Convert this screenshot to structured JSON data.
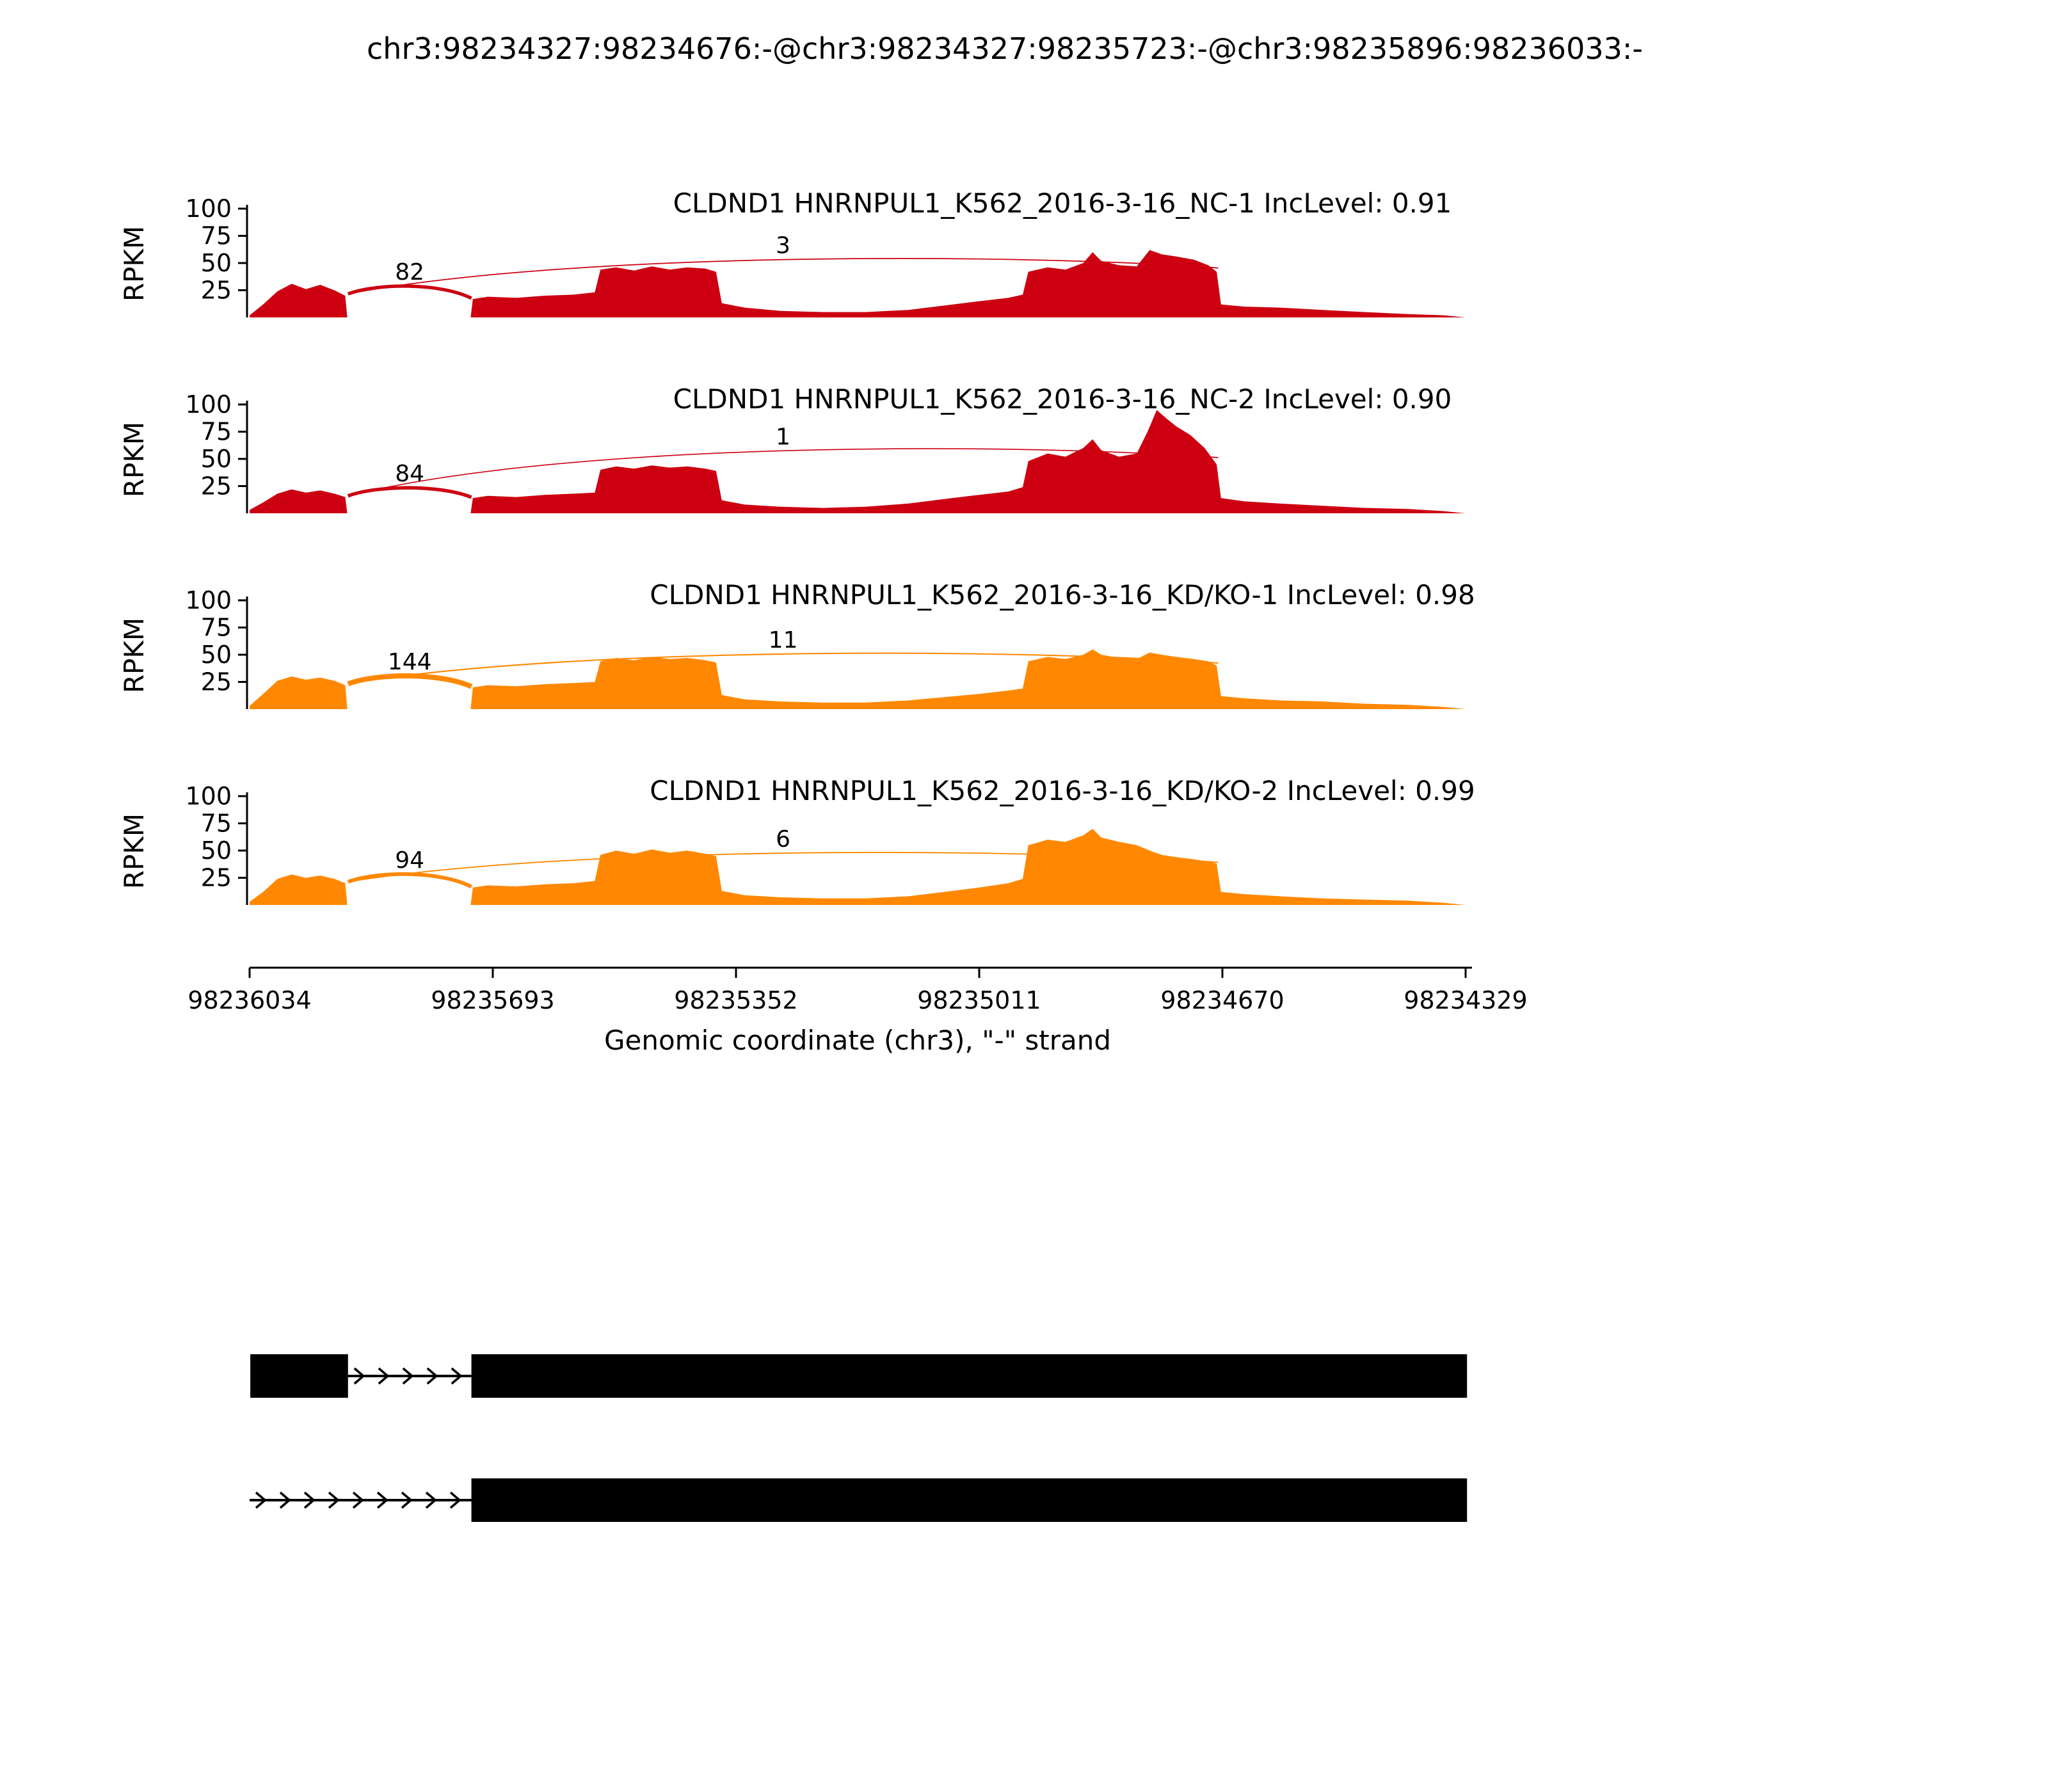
{
  "title": "chr3:98234327:98234676:-@chr3:98234327:98235723:-@chr3:98235896:98236033:-",
  "chart_data": {
    "type": "area",
    "subtype": "sashimi-plot",
    "xlabel": "Genomic coordinate (chr3), \"-\" strand",
    "ylabel": "RPKM",
    "strand": "-",
    "x_domain": [
      98236034,
      98234329
    ],
    "x_ticks": [
      98236034,
      98235693,
      98235352,
      98235011,
      98234670,
      98234329
    ],
    "y_ticks": [
      25,
      50,
      75,
      100
    ],
    "ylim": [
      0,
      100
    ],
    "tracks": [
      {
        "label": "CLDND1 HNRNPUL1_K562_2016-3-16_NC-1 IncLevel: 0.91",
        "inc_level": 0.91,
        "color": "#CC0011",
        "junctions": [
          {
            "from": 98235896,
            "to": 98235723,
            "count": 82
          },
          {
            "from": 98235896,
            "to": 98234676,
            "count": 3
          }
        ],
        "coverage": [
          [
            98236034,
            2
          ],
          [
            98236015,
            12
          ],
          [
            98235995,
            24
          ],
          [
            98235975,
            31
          ],
          [
            98235955,
            26
          ],
          [
            98235935,
            30
          ],
          [
            98235915,
            25
          ],
          [
            98235900,
            20
          ],
          [
            98235897,
            0
          ],
          [
            98235724,
            0
          ],
          [
            98235721,
            17
          ],
          [
            98235700,
            19
          ],
          [
            98235660,
            18
          ],
          [
            98235620,
            20
          ],
          [
            98235580,
            21
          ],
          [
            98235550,
            23
          ],
          [
            98235542,
            44
          ],
          [
            98235520,
            46
          ],
          [
            98235495,
            43
          ],
          [
            98235470,
            47
          ],
          [
            98235445,
            44
          ],
          [
            98235420,
            46
          ],
          [
            98235395,
            45
          ],
          [
            98235380,
            42
          ],
          [
            98235372,
            13
          ],
          [
            98235340,
            9
          ],
          [
            98235290,
            6
          ],
          [
            98235230,
            5
          ],
          [
            98235170,
            5
          ],
          [
            98235110,
            7
          ],
          [
            98235060,
            11
          ],
          [
            98235011,
            15
          ],
          [
            98234970,
            18
          ],
          [
            98234950,
            21
          ],
          [
            98234942,
            42
          ],
          [
            98234915,
            46
          ],
          [
            98234890,
            44
          ],
          [
            98234865,
            50
          ],
          [
            98234852,
            60
          ],
          [
            98234840,
            52
          ],
          [
            98234815,
            48
          ],
          [
            98234790,
            47
          ],
          [
            98234772,
            62
          ],
          [
            98234755,
            58
          ],
          [
            98234735,
            56
          ],
          [
            98234710,
            53
          ],
          [
            98234690,
            48
          ],
          [
            98234678,
            42
          ],
          [
            98234672,
            12
          ],
          [
            98234640,
            10
          ],
          [
            98234590,
            9
          ],
          [
            98234530,
            7
          ],
          [
            98234470,
            5
          ],
          [
            98234410,
            3
          ],
          [
            98234360,
            2
          ],
          [
            98234329,
            0
          ]
        ]
      },
      {
        "label": "CLDND1 HNRNPUL1_K562_2016-3-16_NC-2 IncLevel: 0.90",
        "inc_level": 0.9,
        "color": "#CC0011",
        "junctions": [
          {
            "from": 98235896,
            "to": 98235723,
            "count": 84
          },
          {
            "from": 98235896,
            "to": 98234676,
            "count": 1
          }
        ],
        "coverage": [
          [
            98236034,
            3
          ],
          [
            98236015,
            10
          ],
          [
            98235995,
            18
          ],
          [
            98235975,
            22
          ],
          [
            98235955,
            19
          ],
          [
            98235935,
            21
          ],
          [
            98235915,
            18
          ],
          [
            98235900,
            15
          ],
          [
            98235897,
            0
          ],
          [
            98235724,
            0
          ],
          [
            98235721,
            14
          ],
          [
            98235700,
            16
          ],
          [
            98235660,
            15
          ],
          [
            98235620,
            17
          ],
          [
            98235580,
            18
          ],
          [
            98235550,
            19
          ],
          [
            98235542,
            40
          ],
          [
            98235520,
            43
          ],
          [
            98235495,
            41
          ],
          [
            98235470,
            44
          ],
          [
            98235445,
            42
          ],
          [
            98235420,
            43
          ],
          [
            98235395,
            41
          ],
          [
            98235380,
            39
          ],
          [
            98235372,
            12
          ],
          [
            98235340,
            8
          ],
          [
            98235290,
            6
          ],
          [
            98235230,
            5
          ],
          [
            98235170,
            6
          ],
          [
            98235110,
            9
          ],
          [
            98235060,
            13
          ],
          [
            98235011,
            17
          ],
          [
            98234970,
            20
          ],
          [
            98234950,
            24
          ],
          [
            98234942,
            48
          ],
          [
            98234915,
            55
          ],
          [
            98234890,
            52
          ],
          [
            98234865,
            60
          ],
          [
            98234852,
            68
          ],
          [
            98234840,
            58
          ],
          [
            98234815,
            52
          ],
          [
            98234790,
            55
          ],
          [
            98234775,
            75
          ],
          [
            98234762,
            95
          ],
          [
            98234750,
            88
          ],
          [
            98234735,
            80
          ],
          [
            98234715,
            72
          ],
          [
            98234695,
            60
          ],
          [
            98234678,
            45
          ],
          [
            98234672,
            14
          ],
          [
            98234640,
            11
          ],
          [
            98234590,
            9
          ],
          [
            98234530,
            7
          ],
          [
            98234470,
            5
          ],
          [
            98234410,
            4
          ],
          [
            98234360,
            2
          ],
          [
            98234329,
            0
          ]
        ]
      },
      {
        "label": "CLDND1 HNRNPUL1_K562_2016-3-16_KD/KO-1 IncLevel: 0.98",
        "inc_level": 0.98,
        "color": "#FF8800",
        "junctions": [
          {
            "from": 98235896,
            "to": 98235723,
            "count": 144
          },
          {
            "from": 98235896,
            "to": 98234676,
            "count": 11
          }
        ],
        "coverage": [
          [
            98236034,
            3
          ],
          [
            98236015,
            14
          ],
          [
            98235995,
            26
          ],
          [
            98235975,
            30
          ],
          [
            98235955,
            27
          ],
          [
            98235935,
            29
          ],
          [
            98235915,
            26
          ],
          [
            98235900,
            22
          ],
          [
            98235897,
            0
          ],
          [
            98235724,
            0
          ],
          [
            98235721,
            20
          ],
          [
            98235700,
            22
          ],
          [
            98235660,
            21
          ],
          [
            98235620,
            23
          ],
          [
            98235580,
            24
          ],
          [
            98235550,
            25
          ],
          [
            98235542,
            44
          ],
          [
            98235520,
            47
          ],
          [
            98235495,
            45
          ],
          [
            98235470,
            48
          ],
          [
            98235445,
            46
          ],
          [
            98235420,
            47
          ],
          [
            98235395,
            45
          ],
          [
            98235380,
            43
          ],
          [
            98235372,
            13
          ],
          [
            98235340,
            9
          ],
          [
            98235290,
            7
          ],
          [
            98235230,
            6
          ],
          [
            98235170,
            6
          ],
          [
            98235110,
            8
          ],
          [
            98235060,
            11
          ],
          [
            98235011,
            14
          ],
          [
            98234970,
            17
          ],
          [
            98234950,
            19
          ],
          [
            98234942,
            44
          ],
          [
            98234915,
            48
          ],
          [
            98234890,
            46
          ],
          [
            98234865,
            50
          ],
          [
            98234852,
            55
          ],
          [
            98234840,
            50
          ],
          [
            98234815,
            47
          ],
          [
            98234790,
            46
          ],
          [
            98234772,
            52
          ],
          [
            98234755,
            50
          ],
          [
            98234735,
            48
          ],
          [
            98234710,
            46
          ],
          [
            98234690,
            44
          ],
          [
            98234678,
            40
          ],
          [
            98234672,
            12
          ],
          [
            98234640,
            10
          ],
          [
            98234590,
            8
          ],
          [
            98234530,
            7
          ],
          [
            98234470,
            5
          ],
          [
            98234410,
            4
          ],
          [
            98234360,
            2
          ],
          [
            98234329,
            0
          ]
        ]
      },
      {
        "label": "CLDND1 HNRNPUL1_K562_2016-3-16_KD/KO-2 IncLevel: 0.99",
        "inc_level": 0.99,
        "color": "#FF8800",
        "junctions": [
          {
            "from": 98235896,
            "to": 98235723,
            "count": 94
          },
          {
            "from": 98235896,
            "to": 98234676,
            "count": 6
          }
        ],
        "coverage": [
          [
            98236034,
            3
          ],
          [
            98236015,
            12
          ],
          [
            98235995,
            24
          ],
          [
            98235975,
            28
          ],
          [
            98235955,
            25
          ],
          [
            98235935,
            27
          ],
          [
            98235915,
            24
          ],
          [
            98235900,
            20
          ],
          [
            98235897,
            0
          ],
          [
            98235724,
            0
          ],
          [
            98235721,
            16
          ],
          [
            98235700,
            18
          ],
          [
            98235660,
            17
          ],
          [
            98235620,
            19
          ],
          [
            98235580,
            20
          ],
          [
            98235550,
            22
          ],
          [
            98235542,
            46
          ],
          [
            98235520,
            50
          ],
          [
            98235495,
            47
          ],
          [
            98235470,
            51
          ],
          [
            98235445,
            48
          ],
          [
            98235420,
            50
          ],
          [
            98235395,
            47
          ],
          [
            98235380,
            45
          ],
          [
            98235372,
            13
          ],
          [
            98235340,
            9
          ],
          [
            98235290,
            7
          ],
          [
            98235230,
            6
          ],
          [
            98235170,
            6
          ],
          [
            98235110,
            8
          ],
          [
            98235060,
            12
          ],
          [
            98235011,
            16
          ],
          [
            98234970,
            20
          ],
          [
            98234950,
            24
          ],
          [
            98234942,
            55
          ],
          [
            98234915,
            60
          ],
          [
            98234890,
            58
          ],
          [
            98234865,
            64
          ],
          [
            98234852,
            70
          ],
          [
            98234840,
            62
          ],
          [
            98234815,
            58
          ],
          [
            98234790,
            55
          ],
          [
            98234772,
            50
          ],
          [
            98234755,
            46
          ],
          [
            98234735,
            44
          ],
          [
            98234710,
            42
          ],
          [
            98234690,
            40
          ],
          [
            98234678,
            38
          ],
          [
            98234672,
            12
          ],
          [
            98234640,
            10
          ],
          [
            98234590,
            8
          ],
          [
            98234530,
            6
          ],
          [
            98234470,
            5
          ],
          [
            98234410,
            4
          ],
          [
            98234360,
            2
          ],
          [
            98234329,
            0
          ]
        ]
      }
    ],
    "gene_model": {
      "color": "#000000",
      "isoforms": [
        {
          "exons": [
            [
              98236033,
              98235896
            ],
            [
              98235723,
              98234327
            ]
          ],
          "intron_arrows": [
            [
              98235896,
              98235723
            ]
          ]
        },
        {
          "exons": [
            [
              98235723,
              98234327
            ]
          ],
          "intron_arrows": [
            [
              98236034,
              98235723
            ]
          ]
        }
      ]
    }
  }
}
